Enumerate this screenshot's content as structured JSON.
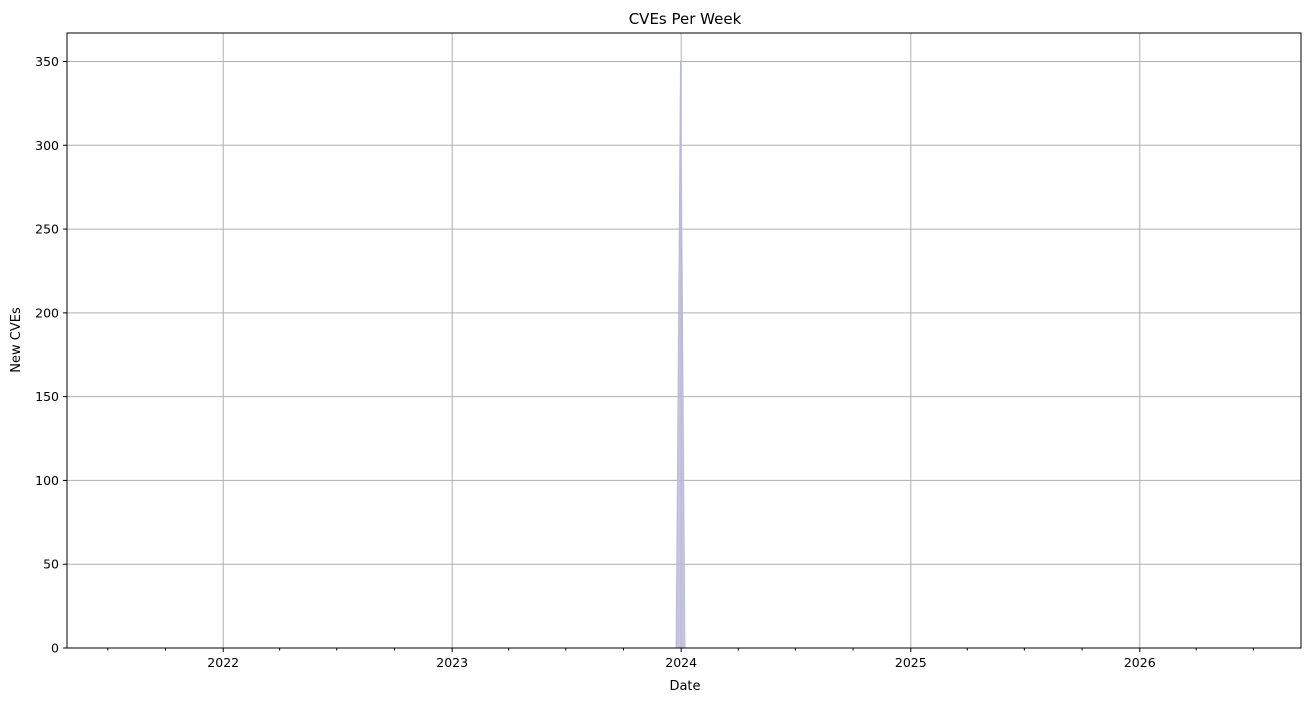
{
  "chart_data": {
    "type": "area",
    "title": "CVEs Per Week",
    "xlabel": "Date",
    "ylabel": "New CVEs",
    "grid": true,
    "colors": {
      "series": "#b8b8d8",
      "grid": "#b0b0b0",
      "axis": "#000000"
    },
    "xlim": [
      "2021-04-27",
      "2026-09-15"
    ],
    "ylim": [
      0,
      367
    ],
    "x_ticks": [
      {
        "date": "2022-01-01",
        "label": "2022"
      },
      {
        "date": "2023-01-01",
        "label": "2023"
      },
      {
        "date": "2024-01-01",
        "label": "2024"
      },
      {
        "date": "2025-01-01",
        "label": "2025"
      },
      {
        "date": "2026-01-01",
        "label": "2026"
      }
    ],
    "x_minor_ticks": [
      "2021-07-01",
      "2021-10-01",
      "2022-04-01",
      "2022-07-01",
      "2022-10-01",
      "2023-04-01",
      "2023-07-01",
      "2023-10-01",
      "2024-04-01",
      "2024-07-01",
      "2024-10-01",
      "2025-04-01",
      "2025-07-01",
      "2025-10-01",
      "2026-04-01",
      "2026-07-01"
    ],
    "y_ticks": [
      0,
      50,
      100,
      150,
      200,
      250,
      300,
      350
    ],
    "series": [
      {
        "x": [
          "2021-04-27",
          "2023-12-24",
          "2023-12-31",
          "2024-01-07",
          "2026-09-15"
        ],
        "values": [
          0,
          0,
          350,
          0,
          0
        ]
      }
    ]
  }
}
